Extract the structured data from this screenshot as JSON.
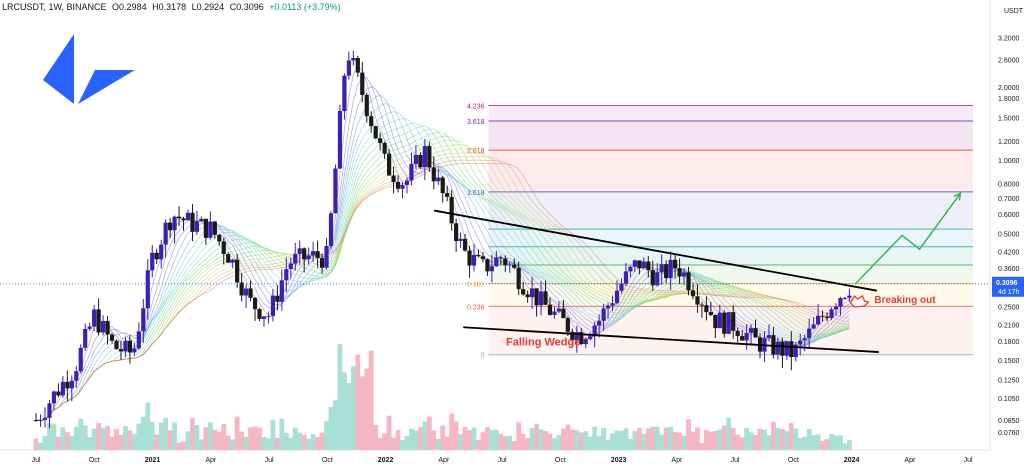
{
  "header": {
    "symbol": "LRCUSDT, 1W, BINANCE",
    "open": "O0.2984",
    "high": "H0.3178",
    "low": "L0.2924",
    "close": "C0.3096",
    "change": "+0.0113 (+3.79%)"
  },
  "colors": {
    "up_candle": "#3c1fb5",
    "down_candle": "#1a1a1a",
    "logo": "#2962ff",
    "vol_up": "#a8e0d6",
    "vol_down": "#f6b7c4",
    "last_price": "#2962ff",
    "annotation": "#e53935",
    "projection": "#2cb34a"
  },
  "logo": {
    "icon": "loopring-logo-icon"
  },
  "chart_data": {
    "type": "candlestick",
    "title": "",
    "price_scale": "log",
    "currency_label": "USDT",
    "ylim": [
      0.064,
      4.0
    ],
    "x_ticks": [
      "Jul",
      "Oct",
      "2021",
      "Apr",
      "Jul",
      "Oct",
      "2022",
      "Apr",
      "Jul",
      "Oct",
      "2023",
      "Apr",
      "Jul",
      "Oct",
      "2024",
      "Apr",
      "Jul"
    ],
    "y_ticks": [
      "3.2000",
      "2.6000",
      "2.0000",
      "1.8000",
      "1.5000",
      "1.2000",
      "1.0000",
      "0.8000",
      "0.7000",
      "0.6000",
      "0.5000",
      "0.4200",
      "0.3600",
      "0.3096",
      "0.2500",
      "0.2100",
      "0.1800",
      "0.1500",
      "0.1250",
      "0.1050",
      "0.0850",
      "0.0760"
    ],
    "last_price": {
      "value": "0.3096",
      "countdown": "4d 17h"
    },
    "price_path": [
      [
        "2020-07",
        0.085
      ],
      [
        "2020-08",
        0.11
      ],
      [
        "2020-09",
        0.14
      ],
      [
        "2020-10",
        0.23
      ],
      [
        "2020-11",
        0.17
      ],
      [
        "2020-12",
        0.16
      ],
      [
        "2021-01",
        0.4
      ],
      [
        "2021-02",
        0.6
      ],
      [
        "2021-03",
        0.55
      ],
      [
        "2021-04",
        0.52
      ],
      [
        "2021-05",
        0.4
      ],
      [
        "2021-06",
        0.26
      ],
      [
        "2021-07",
        0.23
      ],
      [
        "2021-08",
        0.38
      ],
      [
        "2021-09",
        0.4
      ],
      [
        "2021-10",
        0.4
      ],
      [
        "2021-11",
        2.9
      ],
      [
        "2021-12",
        1.7
      ],
      [
        "2022-01",
        0.95
      ],
      [
        "2022-02",
        0.8
      ],
      [
        "2022-03",
        1.1
      ],
      [
        "2022-04",
        0.7
      ],
      [
        "2022-05",
        0.42
      ],
      [
        "2022-06",
        0.36
      ],
      [
        "2022-07",
        0.4
      ],
      [
        "2022-08",
        0.32
      ],
      [
        "2022-09",
        0.26
      ],
      [
        "2022-10",
        0.22
      ],
      [
        "2022-11",
        0.19
      ],
      [
        "2022-12",
        0.22
      ],
      [
        "2023-01",
        0.3
      ],
      [
        "2023-02",
        0.38
      ],
      [
        "2023-03",
        0.33
      ],
      [
        "2023-04",
        0.37
      ],
      [
        "2023-05",
        0.29
      ],
      [
        "2023-06",
        0.22
      ],
      [
        "2023-07",
        0.21
      ],
      [
        "2023-08",
        0.18
      ],
      [
        "2023-09",
        0.17
      ],
      [
        "2023-10",
        0.16
      ],
      [
        "2023-11",
        0.2
      ],
      [
        "2023-12",
        0.26
      ],
      [
        "2024-01",
        0.31
      ]
    ],
    "fib_levels": [
      {
        "label": "4.236",
        "value": 1.68
      },
      {
        "label": "3.618",
        "value": 1.45
      },
      {
        "label": "2.618",
        "value": 1.1
      },
      {
        "label": "1.618",
        "value": 0.74
      },
      {
        "label": "",
        "value": 0.52
      },
      {
        "label": "",
        "value": 0.44
      },
      {
        "label": "",
        "value": 0.37
      },
      {
        "label": "0.382",
        "value": 0.31
      },
      {
        "label": "0.236",
        "value": 0.25
      },
      {
        "label": "0",
        "value": 0.158
      }
    ],
    "annotations": {
      "pattern": "Falling Wedge",
      "breakout": "Breaking out"
    }
  }
}
